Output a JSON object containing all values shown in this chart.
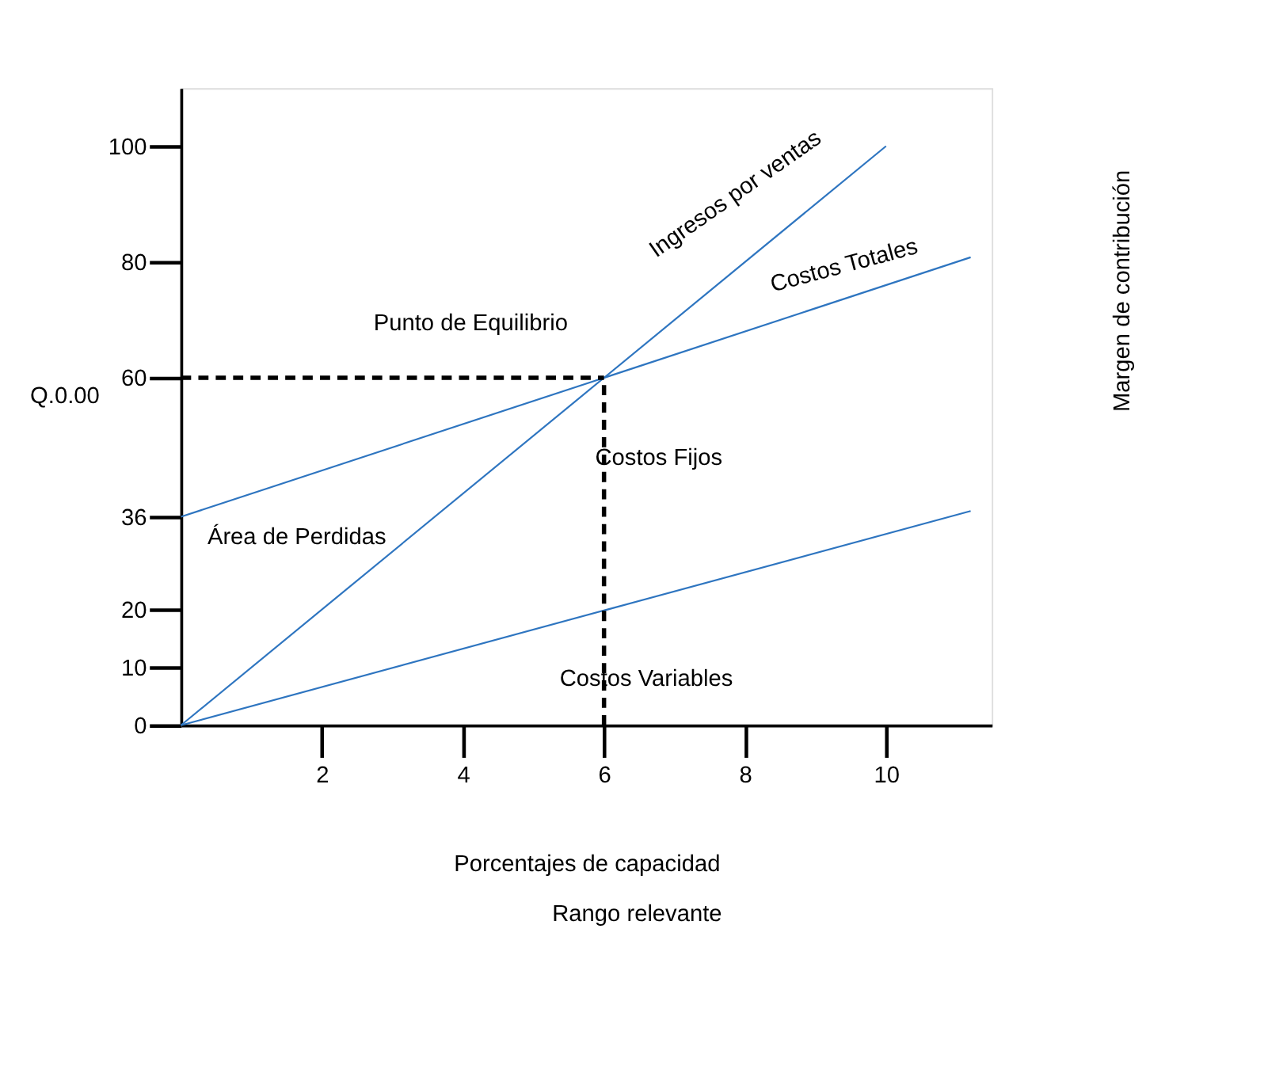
{
  "chart_data": {
    "type": "line",
    "xlabel": "Porcentajes de capacidad",
    "ylabel": "Q.0.00",
    "xlim": [
      0,
      11.5
    ],
    "xticks": [
      2,
      4,
      6,
      8,
      10
    ],
    "ylim": [
      0,
      110
    ],
    "yticks": [
      0,
      10,
      20,
      36,
      60,
      80,
      100
    ],
    "grid": false,
    "marker": "none",
    "series": [
      {
        "name": "Ingresos por ventas",
        "color": "#2e75c0",
        "x": [
          0,
          10
        ],
        "values": [
          0,
          100
        ]
      },
      {
        "name": "Costos Totales",
        "color": "#2e75c0",
        "x": [
          0,
          11.2
        ],
        "values": [
          36,
          80.8
        ]
      },
      {
        "name": "Costos Variables",
        "color": "#2e75c0",
        "x": [
          0,
          11.2
        ],
        "values": [
          0,
          37
        ]
      },
      {
        "color": "#000000",
        "line_style": "dashed",
        "x": [
          0,
          6
        ],
        "values": [
          60,
          60
        ]
      },
      {
        "color": "#000000",
        "line_style": "dashed",
        "x": [
          6,
          6
        ],
        "values": [
          0,
          60
        ]
      }
    ],
    "annotations": [
      {
        "text": "Punto de Equilibrio",
        "x": 6,
        "y": 60
      },
      "Costos Fijos",
      "Área de Perdidas",
      "Margen de contribución",
      "Rango relevante"
    ]
  }
}
